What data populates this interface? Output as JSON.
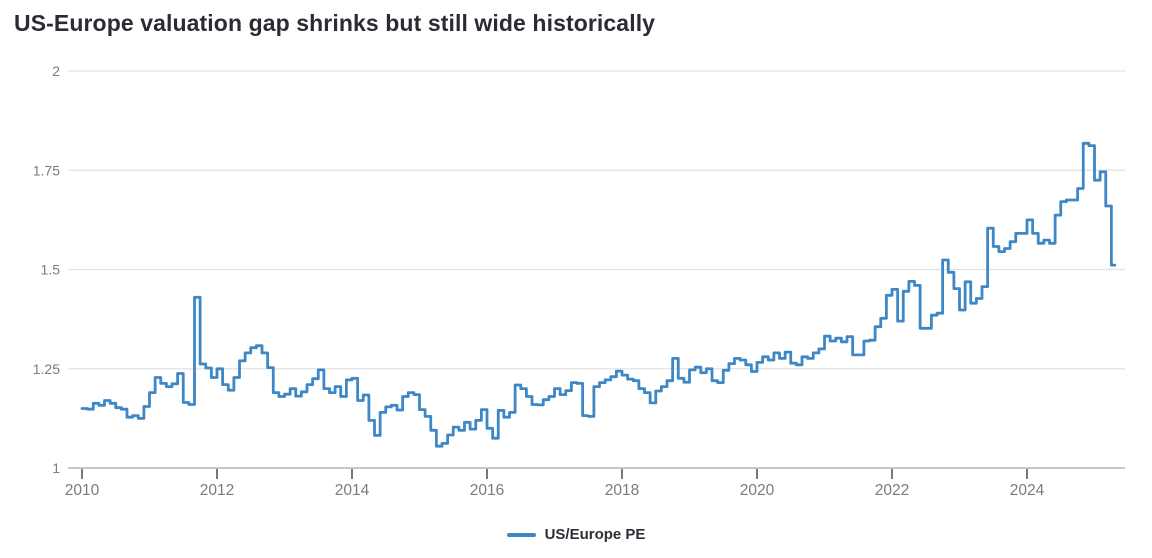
{
  "header": {
    "title": "US-Europe valuation gap shrinks but still wide historically"
  },
  "legend": {
    "items": [
      {
        "label": "US/Europe PE",
        "color": "#3d87c6"
      }
    ]
  },
  "colors": {
    "line": "#3d87c6",
    "gridline": "#e2e2e2",
    "axis_line": "#c8c8c8",
    "tick_mark": "#4b4b4b",
    "tick_label": "#7b7b7b",
    "title_text": "#292d33"
  },
  "chart_data": {
    "type": "line",
    "step": true,
    "title": "US-Europe valuation gap shrinks but still wide historically",
    "xlabel": "",
    "ylabel": "",
    "frequency": "monthly",
    "x_start_label": "2010-01",
    "x_end_label": "2025-04",
    "x_tick_labels": [
      "2010",
      "2012",
      "2014",
      "2016",
      "2018",
      "2020",
      "2022",
      "2024"
    ],
    "months_per_x_tick": 24,
    "y_ticks": [
      1,
      1.25,
      1.5,
      1.75,
      2
    ],
    "y_tick_labels": [
      "1",
      "1.25",
      "1.5",
      "1.75",
      "2"
    ],
    "ylim": [
      1,
      2
    ],
    "grid": "horizontal",
    "legend_position": "bottom-center",
    "series": [
      {
        "name": "US/Europe PE",
        "color": "#3d87c6",
        "values": [
          1.15,
          1.148,
          1.163,
          1.158,
          1.17,
          1.163,
          1.152,
          1.148,
          1.128,
          1.132,
          1.125,
          1.155,
          1.19,
          1.228,
          1.213,
          1.205,
          1.212,
          1.238,
          1.165,
          1.16,
          1.43,
          1.262,
          1.252,
          1.228,
          1.25,
          1.21,
          1.196,
          1.228,
          1.27,
          1.29,
          1.303,
          1.308,
          1.29,
          1.253,
          1.19,
          1.18,
          1.186,
          1.2,
          1.181,
          1.192,
          1.21,
          1.225,
          1.247,
          1.2,
          1.19,
          1.205,
          1.18,
          1.222,
          1.226,
          1.17,
          1.184,
          1.12,
          1.082,
          1.14,
          1.154,
          1.158,
          1.146,
          1.18,
          1.19,
          1.185,
          1.147,
          1.13,
          1.095,
          1.055,
          1.062,
          1.083,
          1.103,
          1.095,
          1.115,
          1.098,
          1.12,
          1.147,
          1.1,
          1.075,
          1.145,
          1.128,
          1.14,
          1.209,
          1.2,
          1.18,
          1.16,
          1.159,
          1.172,
          1.18,
          1.2,
          1.185,
          1.195,
          1.215,
          1.213,
          1.132,
          1.13,
          1.205,
          1.215,
          1.222,
          1.23,
          1.244,
          1.234,
          1.224,
          1.22,
          1.2,
          1.19,
          1.164,
          1.194,
          1.205,
          1.22,
          1.276,
          1.226,
          1.216,
          1.247,
          1.254,
          1.24,
          1.25,
          1.22,
          1.215,
          1.246,
          1.263,
          1.276,
          1.272,
          1.26,
          1.243,
          1.266,
          1.28,
          1.272,
          1.29,
          1.276,
          1.292,
          1.264,
          1.26,
          1.28,
          1.276,
          1.29,
          1.3,
          1.332,
          1.32,
          1.327,
          1.318,
          1.331,
          1.285,
          1.285,
          1.32,
          1.322,
          1.356,
          1.377,
          1.435,
          1.45,
          1.37,
          1.445,
          1.47,
          1.46,
          1.352,
          1.352,
          1.385,
          1.39,
          1.524,
          1.493,
          1.452,
          1.398,
          1.469,
          1.415,
          1.427,
          1.457,
          1.604,
          1.558,
          1.545,
          1.553,
          1.57,
          1.591,
          1.591,
          1.625,
          1.591,
          1.566,
          1.574,
          1.566,
          1.637,
          1.671,
          1.675,
          1.675,
          1.704,
          1.818,
          1.812,
          1.725,
          1.746,
          1.66,
          1.511
        ]
      }
    ]
  }
}
